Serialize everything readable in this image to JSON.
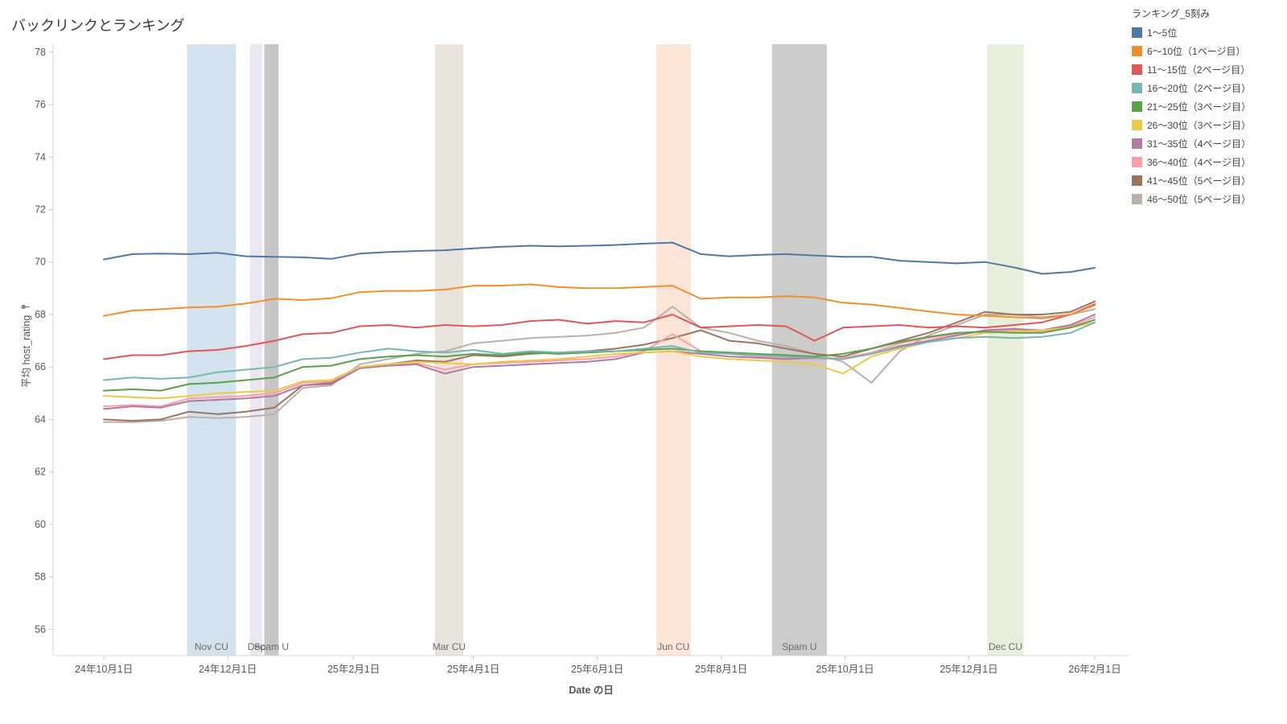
{
  "page": {
    "title": "バックリンクとランキング",
    "x_axis_title": "Date の日",
    "y_axis_title": "平均 host_rating"
  },
  "legend": {
    "title": "ランキング_5刻み"
  },
  "chart_data": {
    "type": "line",
    "title": "バックリンクとランキング",
    "xlabel": "Date の日",
    "ylabel": "平均 host_rating",
    "legend_title": "ランキング_5刻み",
    "legend_position": "top-right",
    "grid": false,
    "x_domain": [
      "2024-09-06",
      "2026-02-18"
    ],
    "ylim": [
      55.0,
      78.3
    ],
    "y_ticks": [
      56,
      58,
      60,
      62,
      64,
      66,
      68,
      70,
      72,
      74,
      76,
      78
    ],
    "x_ticks": [
      {
        "date": "2024-10-01",
        "label": "24年10月1日"
      },
      {
        "date": "2024-12-01",
        "label": "24年12月1日"
      },
      {
        "date": "2025-02-01",
        "label": "25年2月1日"
      },
      {
        "date": "2025-04-01",
        "label": "25年4月1日"
      },
      {
        "date": "2025-06-01",
        "label": "25年6月1日"
      },
      {
        "date": "2025-08-01",
        "label": "25年8月1日"
      },
      {
        "date": "2025-10-01",
        "label": "25年10月1日"
      },
      {
        "date": "2025-12-01",
        "label": "25年12月1日"
      },
      {
        "date": "2026-02-01",
        "label": "26年2月1日"
      }
    ],
    "bands": [
      {
        "label": "Nov CU",
        "start": "2024-11-11",
        "end": "2024-12-05",
        "color": "#d3e3ee"
      },
      {
        "label": "Dec",
        "start": "2024-12-12",
        "end": "2024-12-18",
        "color": "#ebe6ef"
      },
      {
        "label": "Spam U",
        "start": "2024-12-19",
        "end": "2024-12-26",
        "color": "#c6c6c6"
      },
      {
        "label": "Mar CU",
        "start": "2025-03-13",
        "end": "2025-03-27",
        "color": "#eae4de"
      },
      {
        "label": "Jun CU",
        "start": "2025-06-30",
        "end": "2025-07-17",
        "color": "#fbe5d9"
      },
      {
        "label": "Spam U",
        "start": "2025-08-26",
        "end": "2025-09-22",
        "color": "#cccccb"
      },
      {
        "label": "Dec CU",
        "start": "2025-12-10",
        "end": "2025-12-28",
        "color": "#e7efdb"
      }
    ],
    "x": [
      "2024-10-01",
      "2024-10-15",
      "2024-10-29",
      "2024-11-12",
      "2024-11-26",
      "2024-12-10",
      "2024-12-24",
      "2025-01-07",
      "2025-01-21",
      "2025-02-04",
      "2025-02-18",
      "2025-03-04",
      "2025-03-18",
      "2025-04-01",
      "2025-04-15",
      "2025-04-29",
      "2025-05-13",
      "2025-05-27",
      "2025-06-10",
      "2025-06-24",
      "2025-07-08",
      "2025-07-22",
      "2025-08-05",
      "2025-08-19",
      "2025-09-02",
      "2025-09-16",
      "2025-09-30",
      "2025-10-14",
      "2025-10-28",
      "2025-11-11",
      "2025-11-25",
      "2025-12-09",
      "2025-12-23",
      "2026-01-06",
      "2026-01-20",
      "2026-02-01"
    ],
    "series": [
      {
        "name": "1〜5位",
        "color": "#4e79a7",
        "values": [
          70.1,
          70.3,
          70.32,
          70.3,
          70.35,
          70.22,
          70.2,
          70.18,
          70.12,
          70.32,
          70.38,
          70.42,
          70.45,
          70.52,
          70.58,
          70.62,
          70.6,
          70.62,
          70.65,
          70.7,
          70.74,
          70.3,
          70.22,
          70.27,
          70.3,
          70.25,
          70.2,
          70.2,
          70.05,
          70.0,
          69.95,
          70.0,
          69.8,
          69.55,
          69.62,
          69.78
        ]
      },
      {
        "name": "6〜10位（1ページ目）",
        "color": "#f28e2b",
        "values": [
          67.95,
          68.15,
          68.2,
          68.27,
          68.3,
          68.42,
          68.6,
          68.55,
          68.62,
          68.85,
          68.9,
          68.9,
          68.95,
          69.1,
          69.1,
          69.15,
          69.05,
          69.0,
          69.0,
          69.05,
          69.1,
          68.6,
          68.65,
          68.65,
          68.7,
          68.65,
          68.45,
          68.38,
          68.25,
          68.12,
          68.0,
          67.95,
          67.9,
          67.85,
          68.0,
          68.35
        ]
      },
      {
        "name": "11〜15位（2ページ目）",
        "color": "#e15759",
        "values": [
          66.3,
          66.45,
          66.45,
          66.6,
          66.65,
          66.8,
          67.0,
          67.25,
          67.3,
          67.55,
          67.6,
          67.5,
          67.6,
          67.55,
          67.6,
          67.75,
          67.8,
          67.65,
          67.75,
          67.7,
          68.0,
          67.5,
          67.55,
          67.6,
          67.55,
          67.0,
          67.5,
          67.55,
          67.6,
          67.5,
          67.55,
          67.5,
          67.6,
          67.7,
          68.0,
          68.4
        ]
      },
      {
        "name": "16〜20位（2ページ目）",
        "color": "#76b7b2",
        "values": [
          65.5,
          65.6,
          65.55,
          65.6,
          65.8,
          65.9,
          66.0,
          66.3,
          66.35,
          66.55,
          66.7,
          66.6,
          66.55,
          66.65,
          66.5,
          66.6,
          66.55,
          66.6,
          66.6,
          66.7,
          66.8,
          66.55,
          66.5,
          66.45,
          66.4,
          66.35,
          66.3,
          66.5,
          66.75,
          66.95,
          67.1,
          67.15,
          67.1,
          67.15,
          67.3,
          67.7
        ]
      },
      {
        "name": "21〜25位（3ページ目）",
        "color": "#59a14a",
        "values": [
          65.1,
          65.15,
          65.1,
          65.35,
          65.4,
          65.5,
          65.6,
          66.0,
          66.05,
          66.3,
          66.4,
          66.45,
          66.4,
          66.5,
          66.45,
          66.55,
          66.5,
          66.55,
          66.6,
          66.65,
          66.7,
          66.6,
          66.55,
          66.5,
          66.45,
          66.4,
          66.5,
          66.7,
          66.95,
          67.15,
          67.3,
          67.35,
          67.3,
          67.3,
          67.5,
          67.8
        ]
      },
      {
        "name": "26〜30位（3ページ目）",
        "color": "#edc948",
        "values": [
          64.9,
          64.85,
          64.8,
          64.9,
          65.0,
          65.05,
          65.1,
          65.45,
          65.5,
          66.0,
          66.1,
          66.2,
          66.15,
          66.1,
          66.2,
          66.25,
          66.3,
          66.4,
          66.5,
          66.55,
          66.6,
          66.4,
          66.3,
          66.25,
          66.2,
          66.1,
          65.75,
          66.4,
          66.7,
          66.95,
          67.1,
          67.3,
          67.35,
          67.4,
          67.5,
          67.7
        ]
      },
      {
        "name": "31〜35位（4ページ目）",
        "color": "#b07aa1",
        "values": [
          64.4,
          64.5,
          64.45,
          64.7,
          64.75,
          64.8,
          64.9,
          65.3,
          65.35,
          65.95,
          66.05,
          66.1,
          65.75,
          66.0,
          66.05,
          66.1,
          66.15,
          66.2,
          66.3,
          66.55,
          66.6,
          66.5,
          66.4,
          66.35,
          66.3,
          66.35,
          66.3,
          66.5,
          66.8,
          67.0,
          67.2,
          67.4,
          67.45,
          67.4,
          67.6,
          68.0
        ]
      },
      {
        "name": "36〜40位（4ページ目）",
        "color": "#ff9da7",
        "values": [
          64.5,
          64.55,
          64.5,
          64.8,
          64.85,
          64.9,
          65.0,
          65.4,
          65.45,
          66.0,
          66.1,
          66.15,
          65.9,
          66.1,
          66.15,
          66.2,
          66.25,
          66.3,
          66.4,
          66.6,
          67.25,
          66.6,
          66.5,
          66.4,
          66.35,
          66.3,
          66.35,
          66.55,
          66.9,
          67.1,
          67.25,
          67.35,
          67.4,
          67.35,
          67.55,
          67.9
        ]
      },
      {
        "name": "41〜45位（5ページ目）",
        "color": "#9c755f",
        "values": [
          64.0,
          63.95,
          64.0,
          64.3,
          64.2,
          64.3,
          64.45,
          65.3,
          65.4,
          66.0,
          66.1,
          66.25,
          66.2,
          66.45,
          66.4,
          66.5,
          66.55,
          66.6,
          66.7,
          66.85,
          67.1,
          67.4,
          67.0,
          66.9,
          66.7,
          66.5,
          66.4,
          66.7,
          67.0,
          67.3,
          67.7,
          68.1,
          68.0,
          68.0,
          68.1,
          68.5
        ]
      },
      {
        "name": "46〜50位（5ページ目）",
        "color": "#bab0ac",
        "values": [
          63.9,
          63.9,
          63.95,
          64.1,
          64.05,
          64.1,
          64.2,
          65.2,
          65.3,
          66.1,
          66.3,
          66.5,
          66.6,
          66.9,
          67.0,
          67.1,
          67.15,
          67.2,
          67.3,
          67.5,
          68.3,
          67.5,
          67.3,
          67.0,
          66.8,
          66.5,
          66.2,
          65.4,
          66.6,
          67.2,
          67.6,
          68.0,
          68.0,
          67.9,
          68.0,
          68.2
        ]
      }
    ]
  }
}
